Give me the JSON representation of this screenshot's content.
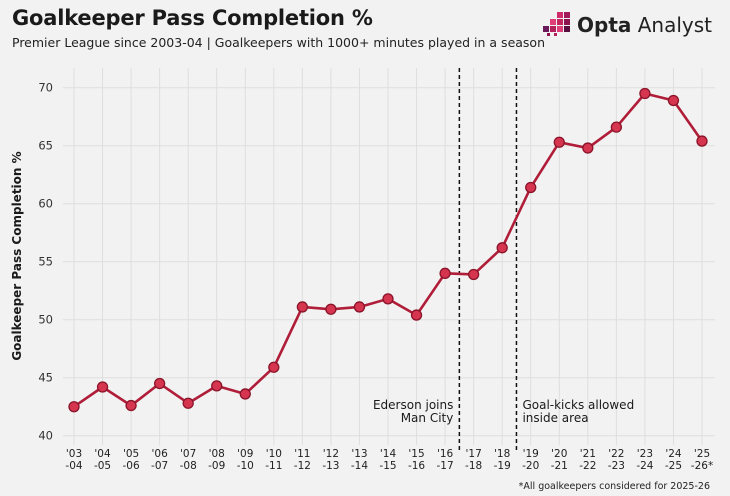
{
  "header": {
    "title": "Goalkeeper Pass Completion %",
    "subtitle": "Premier League since 2003-04 | Goalkeepers with 1000+ minutes played in a season",
    "logo_bold": "Opta",
    "logo_light": " Analyst"
  },
  "footnote": "*All goalkeepers considered for 2025-26",
  "colors": {
    "line": "#b01d38",
    "marker": "#d5354f",
    "marker_edge": "#8a1429",
    "grid": "#dedede"
  },
  "chart_data": {
    "type": "line",
    "title": "Goalkeeper Pass Completion %",
    "ylabel": "Goalkeeper Pass Completion %",
    "xlabel": "",
    "ylim": [
      39.2,
      71.7
    ],
    "yticks": [
      40,
      45,
      50,
      55,
      60,
      65,
      70
    ],
    "grid": true,
    "categories": [
      [
        "'03",
        "-04"
      ],
      [
        "'04",
        "-05"
      ],
      [
        "'05",
        "-06"
      ],
      [
        "'06",
        "-07"
      ],
      [
        "'07",
        "-08"
      ],
      [
        "'08",
        "-09"
      ],
      [
        "'09",
        "-10"
      ],
      [
        "'10",
        "-11"
      ],
      [
        "'11",
        "-12"
      ],
      [
        "'12",
        "-13"
      ],
      [
        "'13",
        "-14"
      ],
      [
        "'14",
        "-15"
      ],
      [
        "'15",
        "-16"
      ],
      [
        "'16",
        "-17"
      ],
      [
        "'17",
        "-18"
      ],
      [
        "'18",
        "-19"
      ],
      [
        "'19",
        "-20"
      ],
      [
        "'20",
        "-21"
      ],
      [
        "'21",
        "-22"
      ],
      [
        "'22",
        "-23"
      ],
      [
        "'23",
        "-24"
      ],
      [
        "'24",
        "-25"
      ],
      [
        "'25",
        "-26*"
      ]
    ],
    "values": [
      42.5,
      44.2,
      42.6,
      44.5,
      42.8,
      44.3,
      43.6,
      45.9,
      51.1,
      50.9,
      51.1,
      51.8,
      50.4,
      54.0,
      53.9,
      56.2,
      61.4,
      65.3,
      64.8,
      66.6,
      69.5,
      68.9,
      65.4
    ],
    "annotations": [
      {
        "after_index": 13,
        "lines": [
          "Ederson joins",
          "Man City"
        ],
        "align": "right"
      },
      {
        "after_index": 15,
        "lines": [
          "Goal-kicks allowed",
          "inside area"
        ],
        "align": "left"
      }
    ]
  }
}
